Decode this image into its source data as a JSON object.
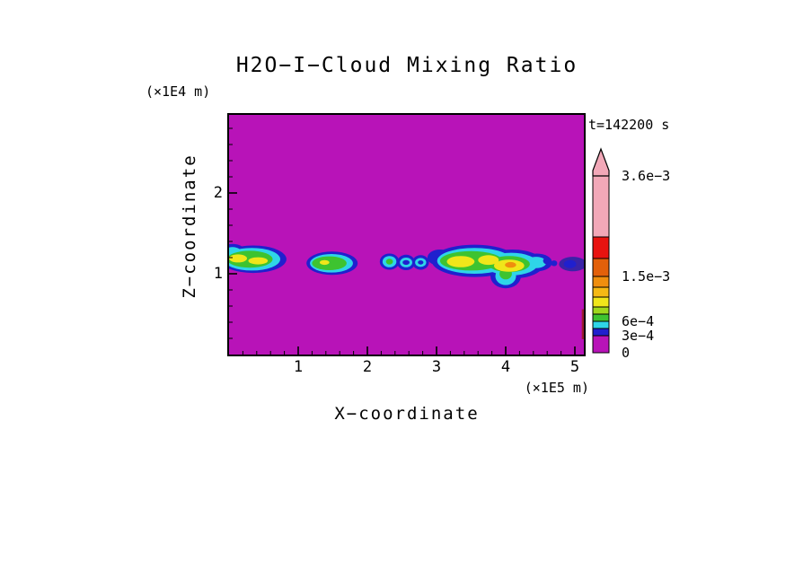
{
  "title": "H2O−I−Cloud Mixing Ratio",
  "timestamp_label": "t=142200 s",
  "axis": {
    "x_label": "X−coordinate",
    "y_label": "Z−coordinate",
    "x_unit": "(×1E5 m)",
    "y_unit": "(×1E4 m)",
    "x_ticks": [
      "1",
      "2",
      "3",
      "4",
      "5"
    ],
    "y_ticks": [
      "1",
      "2"
    ]
  },
  "colorbar": {
    "segments": [
      {
        "color": "magenta",
        "h": 19,
        "label": "0"
      },
      {
        "color": "blue",
        "h": 8,
        "label": "3e−4"
      },
      {
        "color": "cyan",
        "h": 8
      },
      {
        "color": "green",
        "h": 8,
        "label": "6e−4"
      },
      {
        "color": "yellow_green",
        "h": 8
      },
      {
        "color": "yellow",
        "h": 11
      },
      {
        "color": "light_orange",
        "h": 11
      },
      {
        "color": "orange",
        "h": 12
      },
      {
        "color": "dark_orange",
        "h": 20,
        "label": "1.5e−3"
      },
      {
        "color": "red",
        "h": 24
      },
      {
        "color": "pink",
        "h": 68,
        "label_top": "3.6e−3"
      }
    ],
    "arrow_color": "pink"
  },
  "chart_data": {
    "type": "heatmap",
    "subtype": "filled-contour",
    "title": "H2O−I−Cloud Mixing Ratio",
    "time_seconds": 142200,
    "xlabel": "X−coordinate",
    "ylabel": "Z−coordinate",
    "x_scale": "×1E5 m",
    "z_scale": "×1E4 m",
    "xlim": [
      0,
      5.13
    ],
    "zlim": [
      0,
      2.97
    ],
    "x_tick_values": [
      1,
      2,
      3,
      4,
      5
    ],
    "z_tick_values": [
      1,
      2
    ],
    "levels": [
      0,
      0.0003,
      0.0006,
      0.0015,
      0.0036
    ],
    "background_value": 0,
    "legend_position": "right",
    "grid": false,
    "palette": {
      "magenta": "#B813B8",
      "blue": "#2020CE",
      "dark_blue": "#3A23A8",
      "cyan": "#2FD5E8",
      "green": "#3EC330",
      "yellow_green": "#9FD81C",
      "yellow": "#F0E61A",
      "light_orange": "#F5B914",
      "orange": "#EF8E0E",
      "dark_orange": "#E3600A",
      "red": "#E81310",
      "pink": "#F2A8B8",
      "maroon": "#9E1C30",
      "axis": "#000000"
    },
    "clouds": [
      {
        "name": "cloud-band-1",
        "layers": [
          {
            "color": "blue",
            "shapes": [
              [
                0.35,
                1.18,
                0.48,
                0.17
              ],
              [
                0.05,
                1.25,
                0.2,
                0.12
              ]
            ]
          },
          {
            "color": "cyan",
            "shapes": [
              [
                0.33,
                1.18,
                0.41,
                0.14
              ],
              [
                0.05,
                1.25,
                0.14,
                0.08
              ]
            ]
          },
          {
            "color": "green",
            "shapes": [
              [
                0.3,
                1.18,
                0.33,
                0.105
              ]
            ]
          },
          {
            "color": "yellow",
            "shapes": [
              [
                0.13,
                1.19,
                0.13,
                0.05
              ],
              [
                0.42,
                1.16,
                0.14,
                0.045
              ]
            ]
          }
        ]
      },
      {
        "name": "cloud-band-2",
        "layers": [
          {
            "color": "blue",
            "shapes": [
              [
                1.49,
                1.13,
                0.37,
                0.145
              ]
            ]
          },
          {
            "color": "cyan",
            "shapes": [
              [
                1.48,
                1.13,
                0.31,
                0.115
              ]
            ]
          },
          {
            "color": "green",
            "shapes": [
              [
                1.45,
                1.13,
                0.25,
                0.085
              ]
            ]
          },
          {
            "color": "yellow",
            "shapes": [
              [
                1.38,
                1.14,
                0.07,
                0.03
              ]
            ]
          }
        ]
      },
      {
        "name": "cloud-rings-3",
        "layers": [
          {
            "color": "blue",
            "shapes": [
              [
                2.32,
                1.15,
                0.14,
                0.1
              ],
              [
                2.56,
                1.14,
                0.13,
                0.095
              ],
              [
                2.77,
                1.14,
                0.12,
                0.09
              ]
            ]
          },
          {
            "color": "cyan",
            "shapes": [
              [
                2.32,
                1.15,
                0.1,
                0.07
              ],
              [
                2.56,
                1.14,
                0.09,
                0.06
              ],
              [
                2.77,
                1.14,
                0.08,
                0.055
              ]
            ]
          },
          {
            "color": "green",
            "shapes": [
              [
                2.32,
                1.15,
                0.05,
                0.035
              ]
            ]
          },
          {
            "color": "blue",
            "shapes": [
              [
                2.56,
                1.14,
                0.05,
                0.03
              ],
              [
                2.77,
                1.14,
                0.04,
                0.025
              ]
            ]
          }
        ]
      },
      {
        "name": "cloud-band-4",
        "layers": [
          {
            "color": "blue",
            "shapes": [
              [
                3.55,
                1.16,
                0.62,
                0.2
              ],
              [
                3.05,
                1.2,
                0.18,
                0.1
              ],
              [
                4.1,
                1.12,
                0.45,
                0.18
              ],
              [
                4.0,
                0.97,
                0.22,
                0.15
              ],
              [
                4.45,
                1.14,
                0.22,
                0.11
              ]
            ]
          },
          {
            "color": "cyan",
            "shapes": [
              [
                3.55,
                1.16,
                0.54,
                0.16
              ],
              [
                4.08,
                1.12,
                0.38,
                0.14
              ],
              [
                4.0,
                0.97,
                0.15,
                0.11
              ],
              [
                4.44,
                1.14,
                0.15,
                0.07
              ]
            ]
          },
          {
            "color": "green",
            "shapes": [
              [
                3.5,
                1.16,
                0.45,
                0.12
              ],
              [
                4.05,
                1.12,
                0.3,
                0.1
              ],
              [
                4.0,
                1.0,
                0.09,
                0.07
              ]
            ]
          },
          {
            "color": "yellow",
            "shapes": [
              [
                3.35,
                1.15,
                0.2,
                0.07
              ],
              [
                3.75,
                1.17,
                0.15,
                0.06
              ],
              [
                4.05,
                1.1,
                0.22,
                0.075
              ]
            ]
          },
          {
            "color": "orange",
            "shapes": [
              [
                4.07,
                1.11,
                0.08,
                0.035
              ]
            ]
          }
        ]
      },
      {
        "name": "cloud-specks-5",
        "layers": [
          {
            "color": "blue",
            "shapes": [
              [
                4.6,
                1.16,
                0.06,
                0.045
              ],
              [
                4.7,
                1.13,
                0.045,
                0.035
              ]
            ]
          }
        ]
      },
      {
        "name": "cloud-edge-6",
        "layers": [
          {
            "color": "dark_blue",
            "shapes": [
              [
                4.97,
                1.12,
                0.2,
                0.09
              ]
            ]
          },
          {
            "color": "blue",
            "shapes": [
              [
                4.93,
                1.12,
                0.09,
                0.05
              ]
            ]
          }
        ]
      }
    ],
    "edge_marks": [
      {
        "color": "maroon",
        "x0": 5.1,
        "x1": 5.13,
        "z0": 0.19,
        "z1": 0.56
      }
    ]
  }
}
